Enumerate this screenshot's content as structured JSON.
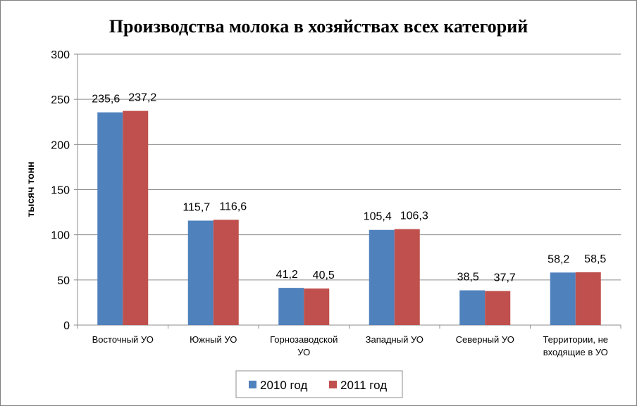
{
  "chart_data": {
    "type": "bar",
    "title": "Производства молока в хозяйствах всех категорий",
    "ylabel": "тысяч тонн",
    "xlabel": "",
    "ylim": [
      0,
      300
    ],
    "yticks": [
      0,
      50,
      100,
      150,
      200,
      250,
      300
    ],
    "grid": true,
    "legend_position": "bottom",
    "categories": [
      [
        "Восточный УО"
      ],
      [
        "Южный УО"
      ],
      [
        "Горнозаводской",
        "УО"
      ],
      [
        "Западный УО"
      ],
      [
        "Северный УО"
      ],
      [
        "Территории, не",
        "входящие в УО"
      ]
    ],
    "series": [
      {
        "name": "2010 год",
        "color": "#4f81bd",
        "values": [
          235.6,
          115.7,
          41.2,
          105.4,
          38.5,
          58.2
        ],
        "labels": [
          "235,6",
          "115,7",
          "41,2",
          "105,4",
          "38,5",
          "58,2"
        ]
      },
      {
        "name": "2011 год",
        "color": "#c0504d",
        "values": [
          237.2,
          116.6,
          40.5,
          106.3,
          37.7,
          58.5
        ],
        "labels": [
          "237,2",
          "116,6",
          "40,5",
          "106,3",
          "37,7",
          "58,5"
        ]
      }
    ]
  }
}
